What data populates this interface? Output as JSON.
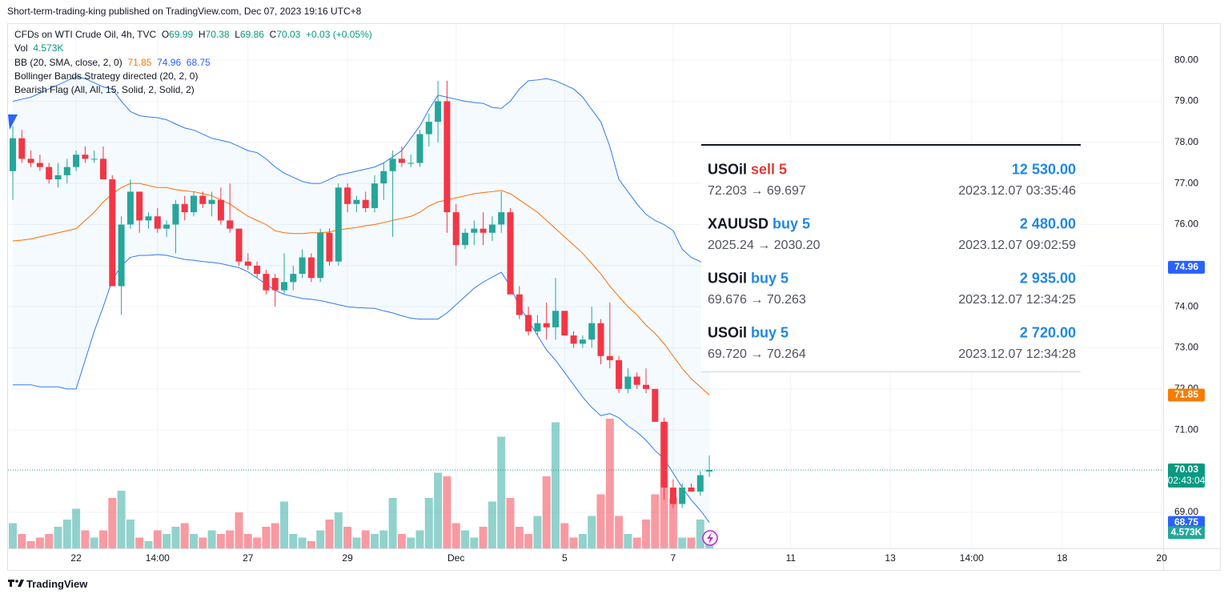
{
  "header": {
    "published": "Short-term-trading-king published on TradingView.com, Dec 07, 2023 19:16 UTC+8"
  },
  "legend": {
    "symbol": "CFDs on WTI Crude Oil, 4h, TVC",
    "o": "O",
    "h": "H",
    "l": "L",
    "c": "C",
    "change": "+0.03 (+0.05%)",
    "vol": "Vol",
    "bb": "BB (20, SMA, close, 2, 0)",
    "strategy": "Bollinger Bands Strategy directed (20, 2, 0)",
    "flag": "Bearish Flag (All, All, 15, Solid, 2, Solid, 2)"
  },
  "chart_data": {
    "type": "candlestick",
    "categories": [
      null,
      null,
      null,
      null,
      null,
      null,
      null,
      "22",
      null,
      null,
      null,
      null,
      null,
      null,
      null,
      null,
      "14:00",
      null,
      null,
      null,
      null,
      null,
      null,
      null,
      null,
      null,
      "27",
      null,
      null,
      null,
      null,
      null,
      null,
      null,
      null,
      null,
      null,
      "29",
      null,
      null,
      null,
      null,
      null,
      null,
      null,
      null,
      null,
      null,
      null,
      "Dec",
      null,
      null,
      null,
      null,
      null,
      null,
      null,
      null,
      null,
      null,
      null,
      "5",
      null,
      null,
      null,
      null,
      null,
      null,
      null,
      null,
      null,
      null,
      null,
      "7",
      null,
      null,
      null,
      null
    ],
    "future_xtick_labels": [
      "11",
      "13",
      "14:00",
      "18",
      "20"
    ],
    "open": [
      77.3,
      78.1,
      77.6,
      77.5,
      77.4,
      77.1,
      77.2,
      77.4,
      77.7,
      77.6,
      77.6,
      77.1,
      74.5,
      76.0,
      76.8,
      76.1,
      76.2,
      75.9,
      76.0,
      76.5,
      76.3,
      76.7,
      76.5,
      76.6,
      76.1,
      75.9,
      75.1,
      75.0,
      74.8,
      74.7,
      74.4,
      74.6,
      74.8,
      75.2,
      74.7,
      75.8,
      75.1,
      76.9,
      76.5,
      76.6,
      76.4,
      77.0,
      77.3,
      77.6,
      77.5,
      77.5,
      78.2,
      78.5,
      79.0,
      76.3,
      75.5,
      75.8,
      75.9,
      75.8,
      76.0,
      76.3,
      74.3,
      73.8,
      73.4,
      73.6,
      73.5,
      73.9,
      73.3,
      73.1,
      73.2,
      73.6,
      72.8,
      72.7,
      72.0,
      72.3,
      72.1,
      72.0,
      71.2,
      69.6,
      69.2,
      69.6,
      69.5,
      69.99
    ],
    "high": [
      78.4,
      78.3,
      77.8,
      77.7,
      77.5,
      77.5,
      77.6,
      77.8,
      77.9,
      77.8,
      77.9,
      77.2,
      76.2,
      77.1,
      76.8,
      76.3,
      76.4,
      76.1,
      76.6,
      76.7,
      76.8,
      76.8,
      76.8,
      76.9,
      77.0,
      75.9,
      75.3,
      75.1,
      74.9,
      74.8,
      75.3,
      75.0,
      75.4,
      75.3,
      75.9,
      75.9,
      77.0,
      77.0,
      76.7,
      76.8,
      77.2,
      77.5,
      77.8,
      77.9,
      77.7,
      78.3,
      78.7,
      79.5,
      79.5,
      76.5,
      75.9,
      76.1,
      76.3,
      76.2,
      76.8,
      76.4,
      74.5,
      74.0,
      73.8,
      74.1,
      74.7,
      73.9,
      73.4,
      73.3,
      74.0,
      73.7,
      74.1,
      72.8,
      72.5,
      72.4,
      72.5,
      72.0,
      71.3,
      69.8,
      69.7,
      69.7,
      70.0,
      70.38
    ],
    "low": [
      76.6,
      77.5,
      77.4,
      77.3,
      77.0,
      76.9,
      77.0,
      77.3,
      77.5,
      77.5,
      77.1,
      74.5,
      73.8,
      75.9,
      75.8,
      75.9,
      75.8,
      75.7,
      75.3,
      76.1,
      76.2,
      76.4,
      76.2,
      76.0,
      75.8,
      75.0,
      74.9,
      74.7,
      74.3,
      74.0,
      74.3,
      74.4,
      74.7,
      74.6,
      74.6,
      75.0,
      75.0,
      76.3,
      76.3,
      76.3,
      76.3,
      76.6,
      75.7,
      77.4,
      77.4,
      77.4,
      77.9,
      78.0,
      75.8,
      75.0,
      75.4,
      75.5,
      75.5,
      75.6,
      75.8,
      74.3,
      73.7,
      73.3,
      73.3,
      73.2,
      73.2,
      73.3,
      73.0,
      73.0,
      73.0,
      72.6,
      72.5,
      71.9,
      71.9,
      72.0,
      71.9,
      71.2,
      69.3,
      69.1,
      69.1,
      69.5,
      69.4,
      69.86
    ],
    "close": [
      78.1,
      77.6,
      77.5,
      77.4,
      77.1,
      77.2,
      77.4,
      77.7,
      77.6,
      77.6,
      77.1,
      74.5,
      76.0,
      76.8,
      76.1,
      76.2,
      75.9,
      76.0,
      76.5,
      76.3,
      76.7,
      76.5,
      76.6,
      76.1,
      75.9,
      75.1,
      75.0,
      74.8,
      74.4,
      74.4,
      74.6,
      74.8,
      75.2,
      74.7,
      75.8,
      75.1,
      76.9,
      76.5,
      76.6,
      76.4,
      77.0,
      77.3,
      77.6,
      77.5,
      77.5,
      78.2,
      78.5,
      79.0,
      76.3,
      75.5,
      75.8,
      75.9,
      75.8,
      76.0,
      76.3,
      74.3,
      73.8,
      73.4,
      73.6,
      73.5,
      73.9,
      73.3,
      73.1,
      73.2,
      73.6,
      72.8,
      72.7,
      72.0,
      72.3,
      72.1,
      72.0,
      71.2,
      69.6,
      69.2,
      69.6,
      69.5,
      69.9,
      70.03
    ],
    "volume": [
      7,
      4,
      2,
      3,
      4,
      6,
      8,
      11,
      5,
      3,
      5,
      14,
      16,
      8,
      3,
      2,
      5,
      4,
      6,
      7,
      4,
      3,
      5,
      4,
      5,
      10,
      4,
      3,
      6,
      7,
      13,
      4,
      3,
      2,
      5,
      8,
      10,
      6,
      3,
      5,
      4,
      5,
      14,
      4,
      3,
      5,
      14,
      21,
      20,
      7,
      5,
      3,
      6,
      13,
      31,
      14,
      6,
      4,
      9,
      20,
      35,
      7,
      3,
      4,
      9,
      15,
      36,
      9,
      4,
      3,
      8,
      15,
      35,
      14,
      3,
      3,
      8,
      4.573
    ],
    "volume_value_label": "4.573K",
    "volume_lim": [
      0,
      40
    ],
    "bands": [
      {
        "name": "upper",
        "color": "#3179f5",
        "values": [
          79.0,
          79.05,
          79.1,
          79.2,
          79.3,
          79.4,
          79.5,
          79.6,
          79.55,
          79.45,
          79.35,
          79.3,
          79.0,
          78.75,
          78.65,
          78.62,
          78.6,
          78.55,
          78.45,
          78.35,
          78.3,
          78.2,
          78.1,
          78.05,
          78.0,
          77.9,
          77.8,
          77.75,
          77.6,
          77.4,
          77.25,
          77.15,
          77.05,
          77.0,
          77.0,
          77.1,
          77.2,
          77.25,
          77.3,
          77.35,
          77.4,
          77.5,
          77.65,
          77.8,
          78.1,
          78.4,
          78.8,
          79.15,
          79.1,
          79.05,
          79.0,
          78.97,
          78.95,
          78.85,
          78.83,
          79.0,
          79.3,
          79.5,
          79.52,
          79.55,
          79.5,
          79.4,
          79.3,
          79.1,
          78.8,
          78.5,
          77.9,
          77.1,
          76.8,
          76.5,
          76.25,
          76.1,
          76.0,
          75.85,
          75.4,
          75.2,
          75.1,
          74.96
        ]
      },
      {
        "name": "basis",
        "color": "#ff6d00",
        "values": [
          75.6,
          75.62,
          75.65,
          75.7,
          75.75,
          75.8,
          75.85,
          75.9,
          76.1,
          76.3,
          76.55,
          76.75,
          76.9,
          77.0,
          77.0,
          76.95,
          76.9,
          76.9,
          76.85,
          76.82,
          76.8,
          76.75,
          76.7,
          76.6,
          76.5,
          76.35,
          76.2,
          76.1,
          76.0,
          75.85,
          75.8,
          75.78,
          75.78,
          75.8,
          75.8,
          75.82,
          75.87,
          75.9,
          75.93,
          75.97,
          76.0,
          76.05,
          76.1,
          76.15,
          76.2,
          76.3,
          76.45,
          76.55,
          76.6,
          76.65,
          76.7,
          76.75,
          76.78,
          76.8,
          76.83,
          76.75,
          76.6,
          76.45,
          76.3,
          76.1,
          75.9,
          75.7,
          75.5,
          75.3,
          75.05,
          74.8,
          74.5,
          74.25,
          74.0,
          73.8,
          73.55,
          73.35,
          73.1,
          72.8,
          72.5,
          72.25,
          72.05,
          71.85
        ]
      },
      {
        "name": "lower",
        "color": "#3179f5",
        "values": [
          72.1,
          72.1,
          72.1,
          72.05,
          72.05,
          72.05,
          72.0,
          72.0,
          72.7,
          73.4,
          74.0,
          74.65,
          75.0,
          75.2,
          75.25,
          75.25,
          75.27,
          75.25,
          75.2,
          75.15,
          75.13,
          75.1,
          75.08,
          75.05,
          75.0,
          74.95,
          74.85,
          74.7,
          74.55,
          74.4,
          74.3,
          74.25,
          74.2,
          74.18,
          74.15,
          74.1,
          74.05,
          74.0,
          73.98,
          73.97,
          73.96,
          73.9,
          73.85,
          73.78,
          73.72,
          73.7,
          73.7,
          73.7,
          73.85,
          74.05,
          74.25,
          74.45,
          74.6,
          74.72,
          74.84,
          74.5,
          74.0,
          73.67,
          73.3,
          72.95,
          72.7,
          72.4,
          72.1,
          71.8,
          71.55,
          71.35,
          71.4,
          71.3,
          71.1,
          70.95,
          70.75,
          70.5,
          70.3,
          69.95,
          69.6,
          69.3,
          69.05,
          68.75
        ]
      }
    ],
    "up_color": "#26a69a",
    "down_color": "#f23645",
    "countdown": "02:43:04",
    "ylim": [
      68.12,
      80.88
    ],
    "yticks": [
      {
        "value": 80,
        "label": "80.00"
      },
      {
        "value": 79,
        "label": "79.00"
      },
      {
        "value": 78,
        "label": "78.00"
      },
      {
        "value": 77,
        "label": "77.00"
      },
      {
        "value": 76,
        "label": "76.00"
      },
      {
        "value": 75,
        "label": "75.00"
      },
      {
        "value": 74,
        "label": "74.00"
      },
      {
        "value": 73,
        "label": "73.00"
      },
      {
        "value": 72,
        "label": "72.00"
      },
      {
        "value": 71,
        "label": "71.00"
      },
      {
        "value": 70,
        "label": "70.00"
      },
      {
        "value": 69,
        "label": "69.00"
      }
    ],
    "grid": true
  },
  "trades": [
    {
      "symbol": "USOil",
      "side": "sell 5",
      "side_color": "#e53935",
      "profit": "12 530.00",
      "prices": "72.203 → 69.697",
      "time": "2023.12.07 03:35:46"
    },
    {
      "symbol": "XAUUSD",
      "side": "buy 5",
      "side_color": "#1e88e5",
      "profit": "2 480.00",
      "prices": "2025.24 → 2030.20",
      "time": "2023.12.07 09:02:59"
    },
    {
      "symbol": "USOil",
      "side": "buy 5",
      "side_color": "#1e88e5",
      "profit": "2 935.00",
      "prices": "69.676 → 70.263",
      "time": "2023.12.07 12:34:25"
    },
    {
      "symbol": "USOil",
      "side": "buy 5",
      "side_color": "#1e88e5",
      "profit": "2 720.00",
      "prices": "69.720 → 70.264",
      "time": "2023.12.07 12:34:28"
    }
  ],
  "footer": {
    "brand": "TradingView"
  }
}
